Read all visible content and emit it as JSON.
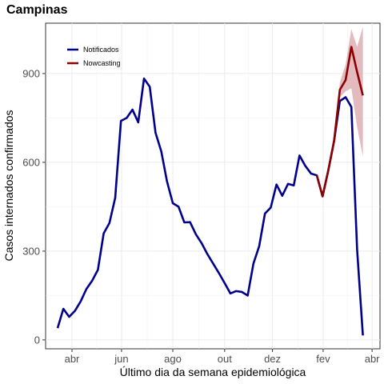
{
  "chart_data": {
    "type": "line",
    "title": "Campinas",
    "xlabel": "Último dia da semana epidemiológica",
    "ylabel": "Casos internados confirmados",
    "x_ticks": [
      "abr",
      "jun",
      "ago",
      "out",
      "dez",
      "fev",
      "abr"
    ],
    "y_ticks": [
      0,
      300,
      600,
      900
    ],
    "ylim": [
      -30,
      1070
    ],
    "grid": true,
    "legend": "top-left",
    "colors": {
      "notificados": "#00008b",
      "nowcasting": "#8b0000",
      "band": "#d9a3a8"
    },
    "series": [
      {
        "name": "Notificados",
        "values": [
          40,
          105,
          78,
          98,
          130,
          172,
          200,
          237,
          360,
          395,
          480,
          740,
          750,
          778,
          735,
          883,
          855,
          700,
          637,
          535,
          462,
          450,
          397,
          398,
          357,
          327,
          290,
          258,
          226,
          192,
          157,
          165,
          162,
          150,
          258,
          317,
          427,
          447,
          525,
          487,
          527,
          522,
          623,
          588,
          562,
          556,
          485,
          573,
          672,
          807,
          820,
          787,
          305,
          15
        ]
      },
      {
        "name": "Nowcasting",
        "start_index": 45,
        "values": [
          556,
          485,
          573,
          672,
          845,
          878,
          990,
          905,
          826
        ],
        "lower": [
          556,
          485,
          573,
          672,
          820,
          840,
          850,
          720,
          620
        ],
        "upper": [
          556,
          485,
          573,
          672,
          870,
          930,
          1050,
          990,
          1058
        ]
      }
    ]
  }
}
